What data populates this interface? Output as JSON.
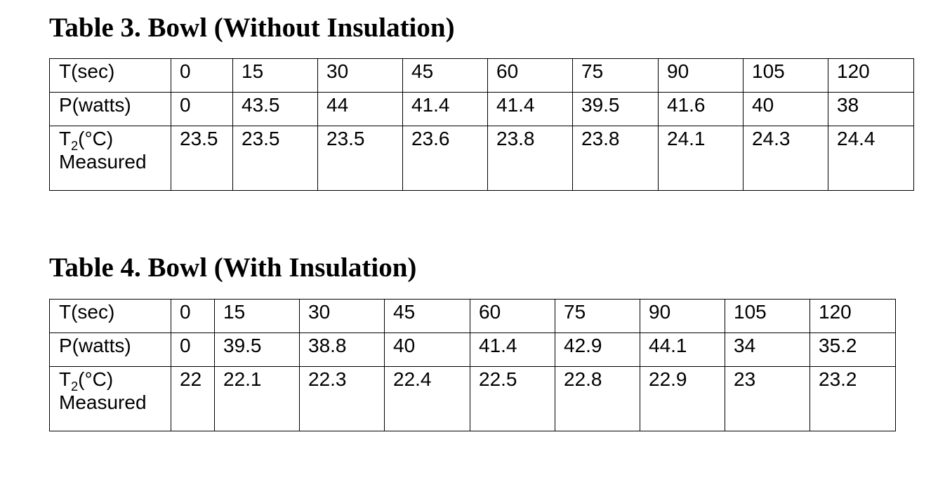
{
  "tables": [
    {
      "caption": "Table 3. Bowl (Without Insulation)",
      "rows": [
        {
          "label": "T(sec)",
          "values": [
            "0",
            "15",
            "30",
            "45",
            "60",
            "75",
            "90",
            "105",
            "120"
          ]
        },
        {
          "label": "P(watts)",
          "values": [
            "0",
            "43.5",
            "44",
            "41.4",
            "41.4",
            "39.5",
            "41.6",
            "40",
            "38"
          ]
        },
        {
          "label_prefix": "T",
          "label_sub": "2",
          "label_suffix": "(°C)",
          "label_line2": "Measured",
          "values": [
            "23.5",
            "23.5",
            "23.5",
            "23.6",
            "23.8",
            "23.8",
            "24.1",
            "24.3",
            "24.4"
          ]
        }
      ]
    },
    {
      "caption": "Table 4. Bowl (With Insulation)",
      "rows": [
        {
          "label": "T(sec)",
          "values": [
            "0",
            "15",
            "30",
            "45",
            "60",
            "75",
            "90",
            "105",
            "120"
          ]
        },
        {
          "label": "P(watts)",
          "values": [
            "0",
            "39.5",
            "38.8",
            "40",
            "41.4",
            "42.9",
            "44.1",
            "34",
            "35.2"
          ]
        },
        {
          "label_prefix": "T",
          "label_sub": "2",
          "label_suffix": "(°C)",
          "label_line2": "Measured",
          "values": [
            "22",
            "22.1",
            "22.3",
            "22.4",
            "22.5",
            "22.8",
            "22.9",
            "23",
            "23.2"
          ]
        }
      ]
    }
  ]
}
